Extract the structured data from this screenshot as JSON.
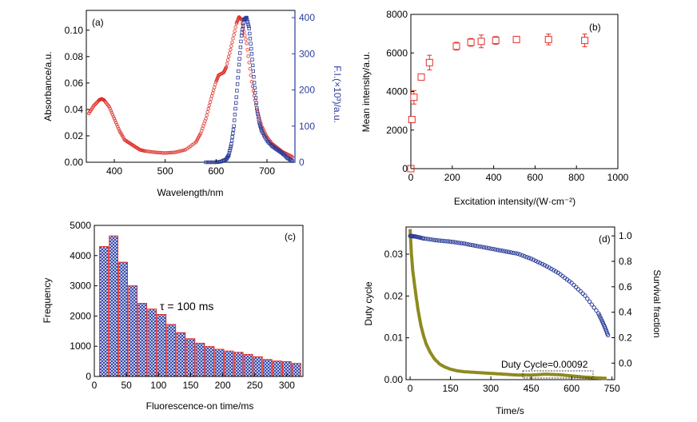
{
  "chart_data": [
    {
      "panel": "(a)",
      "type": "line",
      "xlabel": "Wavelength/nm",
      "ylabel": "Absorbance/a.u.",
      "y2label": "F.I.(×10³)/a.u.",
      "xlim": [
        345,
        755
      ],
      "ylim": [
        0,
        0.115
      ],
      "y2lim": [
        0,
        420
      ],
      "xticks": [
        "400",
        "500",
        "600",
        "700"
      ],
      "yticks": [
        "0.00",
        "0.02",
        "0.04",
        "0.06",
        "0.08",
        "0.10"
      ],
      "y2ticks": [
        "0",
        "100",
        "200",
        "300",
        "400"
      ],
      "colors": {
        "absorbance": "#e0302a",
        "fluorescence": "#2b3d9a"
      },
      "series": [
        {
          "axis": "left",
          "marker": "circle",
          "x": [
            350,
            360,
            370,
            375,
            380,
            390,
            400,
            410,
            420,
            430,
            440,
            450,
            460,
            480,
            500,
            520,
            540,
            560,
            570,
            580,
            590,
            600,
            605,
            615,
            620,
            630,
            640,
            645,
            650,
            660,
            670,
            680,
            690,
            700,
            710,
            720,
            730,
            740,
            750
          ],
          "y": [
            0.037,
            0.043,
            0.047,
            0.048,
            0.047,
            0.042,
            0.033,
            0.024,
            0.017,
            0.0145,
            0.012,
            0.0095,
            0.0085,
            0.0075,
            0.007,
            0.0075,
            0.0095,
            0.015,
            0.022,
            0.033,
            0.048,
            0.061,
            0.066,
            0.068,
            0.072,
            0.088,
            0.105,
            0.11,
            0.108,
            0.09,
            0.061,
            0.04,
            0.027,
            0.019,
            0.014,
            0.011,
            0.008,
            0.006,
            0.004
          ]
        },
        {
          "axis": "right",
          "marker": "square",
          "x": [
            580,
            600,
            610,
            620,
            625,
            630,
            635,
            640,
            645,
            650,
            655,
            660,
            665,
            670,
            675,
            680,
            685,
            690,
            700,
            710,
            720,
            730,
            740,
            750
          ],
          "y": [
            0,
            0,
            2,
            8,
            20,
            50,
            100,
            180,
            270,
            350,
            395,
            400,
            370,
            300,
            220,
            150,
            110,
            85,
            60,
            45,
            35,
            25,
            12,
            3
          ]
        }
      ]
    },
    {
      "panel": "(b)",
      "type": "scatter",
      "xlabel": "Excitation intensity/(W·cm⁻²)",
      "ylabel": "Mean intensity/a.u.",
      "xlim": [
        0,
        1000
      ],
      "ylim": [
        0,
        8000
      ],
      "xticks": [
        "0",
        "200",
        "400",
        "600",
        "800",
        "1000"
      ],
      "yticks": [
        "0",
        "2000",
        "4000",
        "6000",
        "8000"
      ],
      "color": "#e0302a",
      "x": [
        0,
        5,
        15,
        50,
        90,
        220,
        290,
        340,
        410,
        510,
        665,
        840
      ],
      "y": [
        0,
        2550,
        3700,
        4750,
        5500,
        6350,
        6550,
        6600,
        6650,
        6700,
        6700,
        6650
      ],
      "err": [
        0,
        150,
        350,
        150,
        380,
        200,
        200,
        330,
        200,
        150,
        280,
        330
      ]
    },
    {
      "panel": "(c)",
      "type": "bar",
      "xlabel": "Fluorescence-on time/ms",
      "ylabel": "Frequency",
      "annotation": "τ = 100 ms",
      "xlim": [
        0,
        325
      ],
      "ylim": [
        0,
        5000
      ],
      "xticks": [
        "0",
        "50",
        "100",
        "150",
        "200",
        "250",
        "300"
      ],
      "yticks": [
        "0",
        "1000",
        "2000",
        "3000",
        "4000",
        "5000"
      ],
      "colors": {
        "fill": "#2c42a8",
        "edge": "#e0302a"
      },
      "categories": [
        15,
        30,
        45,
        60,
        75,
        90,
        105,
        120,
        135,
        150,
        165,
        180,
        195,
        210,
        225,
        240,
        255,
        270,
        285,
        300,
        315
      ],
      "values": [
        4300,
        4650,
        3780,
        3000,
        2420,
        2230,
        2050,
        1720,
        1450,
        1250,
        1100,
        990,
        900,
        840,
        800,
        730,
        650,
        560,
        510,
        490,
        430
      ]
    },
    {
      "panel": "(d)",
      "type": "line",
      "xlabel": "Time/s",
      "ylabel": "Duty cycle",
      "y2label": "Survival fraction",
      "annotation": "Duty Cycle=0.00092",
      "xlim": [
        -15,
        760
      ],
      "ylim": [
        0,
        0.0365
      ],
      "y2lim": [
        -0.13,
        1.07
      ],
      "xticks": [
        "0",
        "150",
        "300",
        "450",
        "600",
        "750"
      ],
      "yticks": [
        "0.00",
        "0.01",
        "0.02",
        "0.03"
      ],
      "y2ticks": [
        "0.0",
        "0.2",
        "0.4",
        "0.6",
        "0.8",
        "1.0"
      ],
      "colors": {
        "duty": "#8e8a1f",
        "survival": "#2b3d9a"
      },
      "series": [
        {
          "axis": "left",
          "x": [
            0,
            5,
            10,
            20,
            30,
            40,
            50,
            60,
            75,
            90,
            110,
            130,
            150,
            175,
            200,
            250,
            300,
            350,
            400,
            450,
            500,
            550,
            600,
            650,
            700,
            730
          ],
          "y": [
            0.036,
            0.03,
            0.026,
            0.021,
            0.0165,
            0.013,
            0.0105,
            0.0085,
            0.0065,
            0.005,
            0.0037,
            0.003,
            0.0025,
            0.0021,
            0.0019,
            0.0017,
            0.0015,
            0.0013,
            0.0011,
            0.0011,
            0.0013,
            0.0012,
            0.0009,
            0.0006,
            0.0004,
            0.0003
          ]
        },
        {
          "axis": "right",
          "marker": "circle",
          "x": [
            0,
            20,
            50,
            100,
            150,
            200,
            250,
            300,
            350,
            400,
            450,
            500,
            550,
            600,
            650,
            700,
            720,
            735
          ],
          "y": [
            1.0,
            0.995,
            0.98,
            0.965,
            0.955,
            0.94,
            0.92,
            0.9,
            0.88,
            0.86,
            0.82,
            0.77,
            0.71,
            0.63,
            0.53,
            0.39,
            0.3,
            0.22
          ]
        }
      ]
    }
  ]
}
